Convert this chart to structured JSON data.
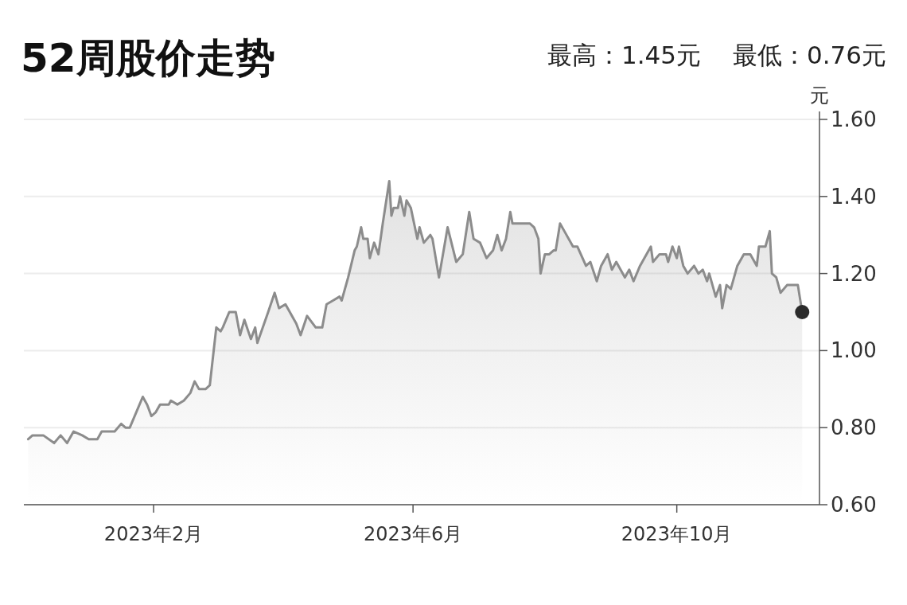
{
  "chart_data": {
    "type": "area",
    "title": "52周股价走势",
    "annotations": [
      "最高：1.45元",
      "最低：0.76元"
    ],
    "ylabel": "元",
    "xlim": [
      "2022-12-03",
      "2023-12-06"
    ],
    "xticks": [
      {
        "value": "2023-02-01",
        "label": "2023年2月"
      },
      {
        "value": "2023-06-01",
        "label": "2023年6月"
      },
      {
        "value": "2023-10-01",
        "label": "2023年10月"
      }
    ],
    "ylim": [
      0.6,
      1.6
    ],
    "yticks": [
      {
        "value": 0.6,
        "label": "0.60"
      },
      {
        "value": 0.8,
        "label": "0.80"
      },
      {
        "value": 1.0,
        "label": "1.00"
      },
      {
        "value": 1.2,
        "label": "1.20"
      },
      {
        "value": 1.4,
        "label": "1.40"
      },
      {
        "value": 1.6,
        "label": "1.60"
      }
    ],
    "grid": "y",
    "series": [
      {
        "color": "#8c8c8c",
        "x": [
          "2022-12-05",
          "2022-12-07",
          "2022-12-12",
          "2022-12-17",
          "2022-12-20",
          "2022-12-23",
          "2022-12-26",
          "2022-12-30",
          "2023-01-02",
          "2023-01-06",
          "2023-01-08",
          "2023-01-14",
          "2023-01-17",
          "2023-01-19",
          "2023-01-21",
          "2023-01-27",
          "2023-01-29",
          "2023-01-31",
          "2023-02-02",
          "2023-02-04",
          "2023-02-08",
          "2023-02-09",
          "2023-02-12",
          "2023-02-15",
          "2023-02-18",
          "2023-02-20",
          "2023-02-22",
          "2023-02-25",
          "2023-02-27",
          "2023-02-28",
          "2023-03-02",
          "2023-03-04",
          "2023-03-05",
          "2023-03-08",
          "2023-03-11",
          "2023-03-13",
          "2023-03-15",
          "2023-03-18",
          "2023-03-20",
          "2023-03-21",
          "2023-03-26",
          "2023-03-29",
          "2023-03-31",
          "2023-04-03",
          "2023-04-08",
          "2023-04-10",
          "2023-04-13",
          "2023-04-17",
          "2023-04-20",
          "2023-04-22",
          "2023-04-25",
          "2023-04-28",
          "2023-04-29",
          "2023-05-02",
          "2023-05-05",
          "2023-05-06",
          "2023-05-08",
          "2023-05-09",
          "2023-05-11",
          "2023-05-12",
          "2023-05-14",
          "2023-05-16",
          "2023-05-18",
          "2023-05-21",
          "2023-05-22",
          "2023-05-23",
          "2023-05-25",
          "2023-05-26",
          "2023-05-28",
          "2023-05-29",
          "2023-05-31",
          "2023-06-03",
          "2023-06-04",
          "2023-06-06",
          "2023-06-09",
          "2023-06-10",
          "2023-06-13",
          "2023-06-17",
          "2023-06-21",
          "2023-06-24",
          "2023-06-27",
          "2023-06-29",
          "2023-07-02",
          "2023-07-05",
          "2023-07-08",
          "2023-07-10",
          "2023-07-12",
          "2023-07-14",
          "2023-07-16",
          "2023-07-17",
          "2023-07-19",
          "2023-07-25",
          "2023-07-27",
          "2023-07-29",
          "2023-07-30",
          "2023-08-01",
          "2023-08-03",
          "2023-08-05",
          "2023-08-06",
          "2023-08-08",
          "2023-08-10",
          "2023-08-14",
          "2023-08-16",
          "2023-08-20",
          "2023-08-22",
          "2023-08-25",
          "2023-08-27",
          "2023-08-30",
          "2023-09-01",
          "2023-09-03",
          "2023-09-07",
          "2023-09-09",
          "2023-09-11",
          "2023-09-14",
          "2023-09-19",
          "2023-09-20",
          "2023-09-23",
          "2023-09-26",
          "2023-09-27",
          "2023-09-29",
          "2023-10-01",
          "2023-10-02",
          "2023-10-04",
          "2023-10-06",
          "2023-10-09",
          "2023-10-11",
          "2023-10-13",
          "2023-10-15",
          "2023-10-16",
          "2023-10-19",
          "2023-10-21",
          "2023-10-22",
          "2023-10-24",
          "2023-10-26",
          "2023-10-29",
          "2023-11-01",
          "2023-11-04",
          "2023-11-07",
          "2023-11-08",
          "2023-11-11",
          "2023-11-13",
          "2023-11-14",
          "2023-11-16",
          "2023-11-18",
          "2023-11-21",
          "2023-11-23",
          "2023-11-26",
          "2023-11-28"
        ],
        "values": [
          0.77,
          0.78,
          0.78,
          0.76,
          0.78,
          0.76,
          0.79,
          0.78,
          0.77,
          0.77,
          0.79,
          0.79,
          0.81,
          0.8,
          0.8,
          0.88,
          0.86,
          0.83,
          0.84,
          0.86,
          0.86,
          0.87,
          0.86,
          0.87,
          0.89,
          0.92,
          0.9,
          0.9,
          0.91,
          0.96,
          1.06,
          1.05,
          1.06,
          1.1,
          1.1,
          1.04,
          1.08,
          1.03,
          1.06,
          1.02,
          1.1,
          1.15,
          1.11,
          1.12,
          1.07,
          1.04,
          1.09,
          1.06,
          1.06,
          1.12,
          1.13,
          1.14,
          1.13,
          1.19,
          1.26,
          1.27,
          1.32,
          1.29,
          1.29,
          1.24,
          1.28,
          1.25,
          1.33,
          1.44,
          1.35,
          1.37,
          1.37,
          1.4,
          1.35,
          1.39,
          1.37,
          1.29,
          1.32,
          1.28,
          1.3,
          1.29,
          1.19,
          1.32,
          1.23,
          1.25,
          1.36,
          1.29,
          1.28,
          1.24,
          1.26,
          1.3,
          1.26,
          1.29,
          1.36,
          1.33,
          1.33,
          1.33,
          1.32,
          1.29,
          1.2,
          1.25,
          1.25,
          1.26,
          1.26,
          1.33,
          1.31,
          1.27,
          1.27,
          1.22,
          1.23,
          1.18,
          1.22,
          1.25,
          1.21,
          1.23,
          1.19,
          1.21,
          1.18,
          1.22,
          1.27,
          1.23,
          1.25,
          1.25,
          1.23,
          1.27,
          1.24,
          1.27,
          1.22,
          1.2,
          1.22,
          1.2,
          1.21,
          1.18,
          1.2,
          1.14,
          1.17,
          1.11,
          1.17,
          1.16,
          1.22,
          1.25,
          1.25,
          1.22,
          1.27,
          1.27,
          1.31,
          1.2,
          1.19,
          1.15,
          1.17,
          1.17,
          1.17,
          1.1
        ]
      },
      {
        "type": "scatter",
        "color": "#2b2b2b",
        "marker": "circle",
        "x": [
          "2023-11-28"
        ],
        "values": [
          1.1
        ]
      }
    ]
  }
}
